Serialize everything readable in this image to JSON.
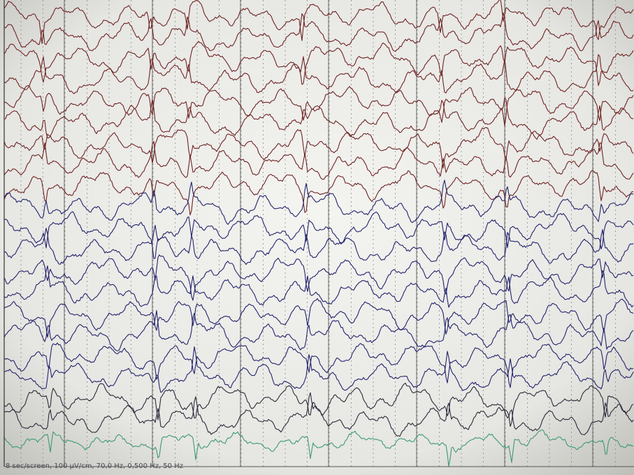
{
  "status_bar": {
    "text": "8 sec/screen, 100 µV/cm, 70,0 Hz, 0,500 Hz, 50 Hz"
  }
}
